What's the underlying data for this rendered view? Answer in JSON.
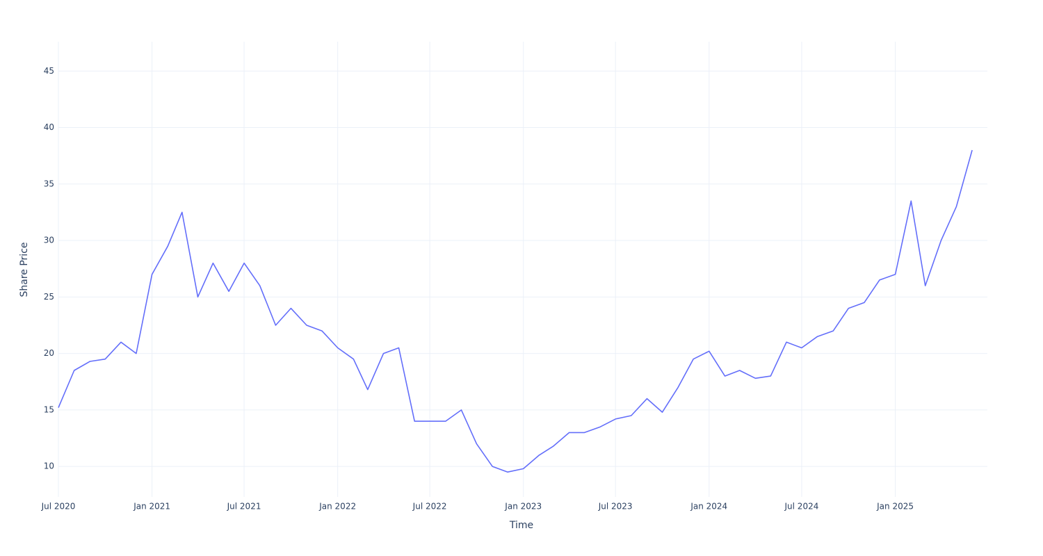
{
  "chart_data": {
    "type": "line",
    "x_label": "Time",
    "y_label": "Share Price",
    "x": [
      "2020-07",
      "2020-08",
      "2020-09",
      "2020-10",
      "2020-11",
      "2020-12",
      "2021-01",
      "2021-02",
      "2021-03",
      "2021-04",
      "2021-05",
      "2021-06",
      "2021-07",
      "2021-08",
      "2021-09",
      "2021-10",
      "2021-11",
      "2021-12",
      "2022-01",
      "2022-02",
      "2022-03",
      "2022-04",
      "2022-05",
      "2022-06",
      "2022-07",
      "2022-08",
      "2022-09",
      "2022-10",
      "2022-11",
      "2022-12",
      "2023-01",
      "2023-02",
      "2023-03",
      "2023-04",
      "2023-05",
      "2023-06",
      "2023-07",
      "2023-08",
      "2023-09",
      "2023-10",
      "2023-11",
      "2023-12",
      "2024-01",
      "2024-02",
      "2024-03",
      "2024-04",
      "2024-05",
      "2024-06",
      "2024-07",
      "2024-08",
      "2024-09",
      "2024-10",
      "2024-11",
      "2024-12",
      "2025-01",
      "2025-02",
      "2025-03",
      "2025-04",
      "2025-05",
      "2025-06"
    ],
    "series": [
      {
        "name": "Share Price",
        "color": "#636efa",
        "values": [
          15.2,
          18.5,
          19.3,
          19.5,
          21.0,
          20.0,
          27.0,
          29.5,
          32.5,
          25.0,
          28.0,
          25.5,
          28.0,
          26.0,
          22.5,
          24.0,
          22.5,
          22.0,
          20.5,
          19.5,
          16.8,
          20.0,
          20.5,
          14.0,
          14.0,
          14.0,
          15.0,
          12.0,
          10.0,
          9.5,
          9.8,
          11.0,
          11.8,
          13.0,
          13.0,
          13.5,
          14.2,
          14.5,
          16.0,
          14.8,
          17.0,
          19.5,
          20.2,
          18.0,
          18.5,
          17.8,
          18.0,
          21.0,
          20.5,
          21.5,
          22.0,
          24.0,
          24.5,
          26.5,
          27.0,
          33.5,
          26.0,
          30.0,
          33.0,
          38.0
        ]
      }
    ],
    "xlim": [
      "2020-07",
      "2025-07"
    ],
    "xticks": [
      {
        "value": "2020-07",
        "label": "Jul 2020"
      },
      {
        "value": "2021-01",
        "label": "Jan 2021"
      },
      {
        "value": "2021-07",
        "label": "Jul 2021"
      },
      {
        "value": "2022-01",
        "label": "Jan 2022"
      },
      {
        "value": "2022-07",
        "label": "Jul 2022"
      },
      {
        "value": "2023-01",
        "label": "Jan 2023"
      },
      {
        "value": "2023-07",
        "label": "Jul 2023"
      },
      {
        "value": "2024-01",
        "label": "Jan 2024"
      },
      {
        "value": "2024-07",
        "label": "Jul 2024"
      },
      {
        "value": "2025-01",
        "label": "Jan 2025"
      }
    ],
    "ylim": [
      7.3,
      47.6
    ],
    "yticks": [
      10,
      15,
      20,
      25,
      30,
      35,
      40,
      45
    ],
    "grid": true
  }
}
